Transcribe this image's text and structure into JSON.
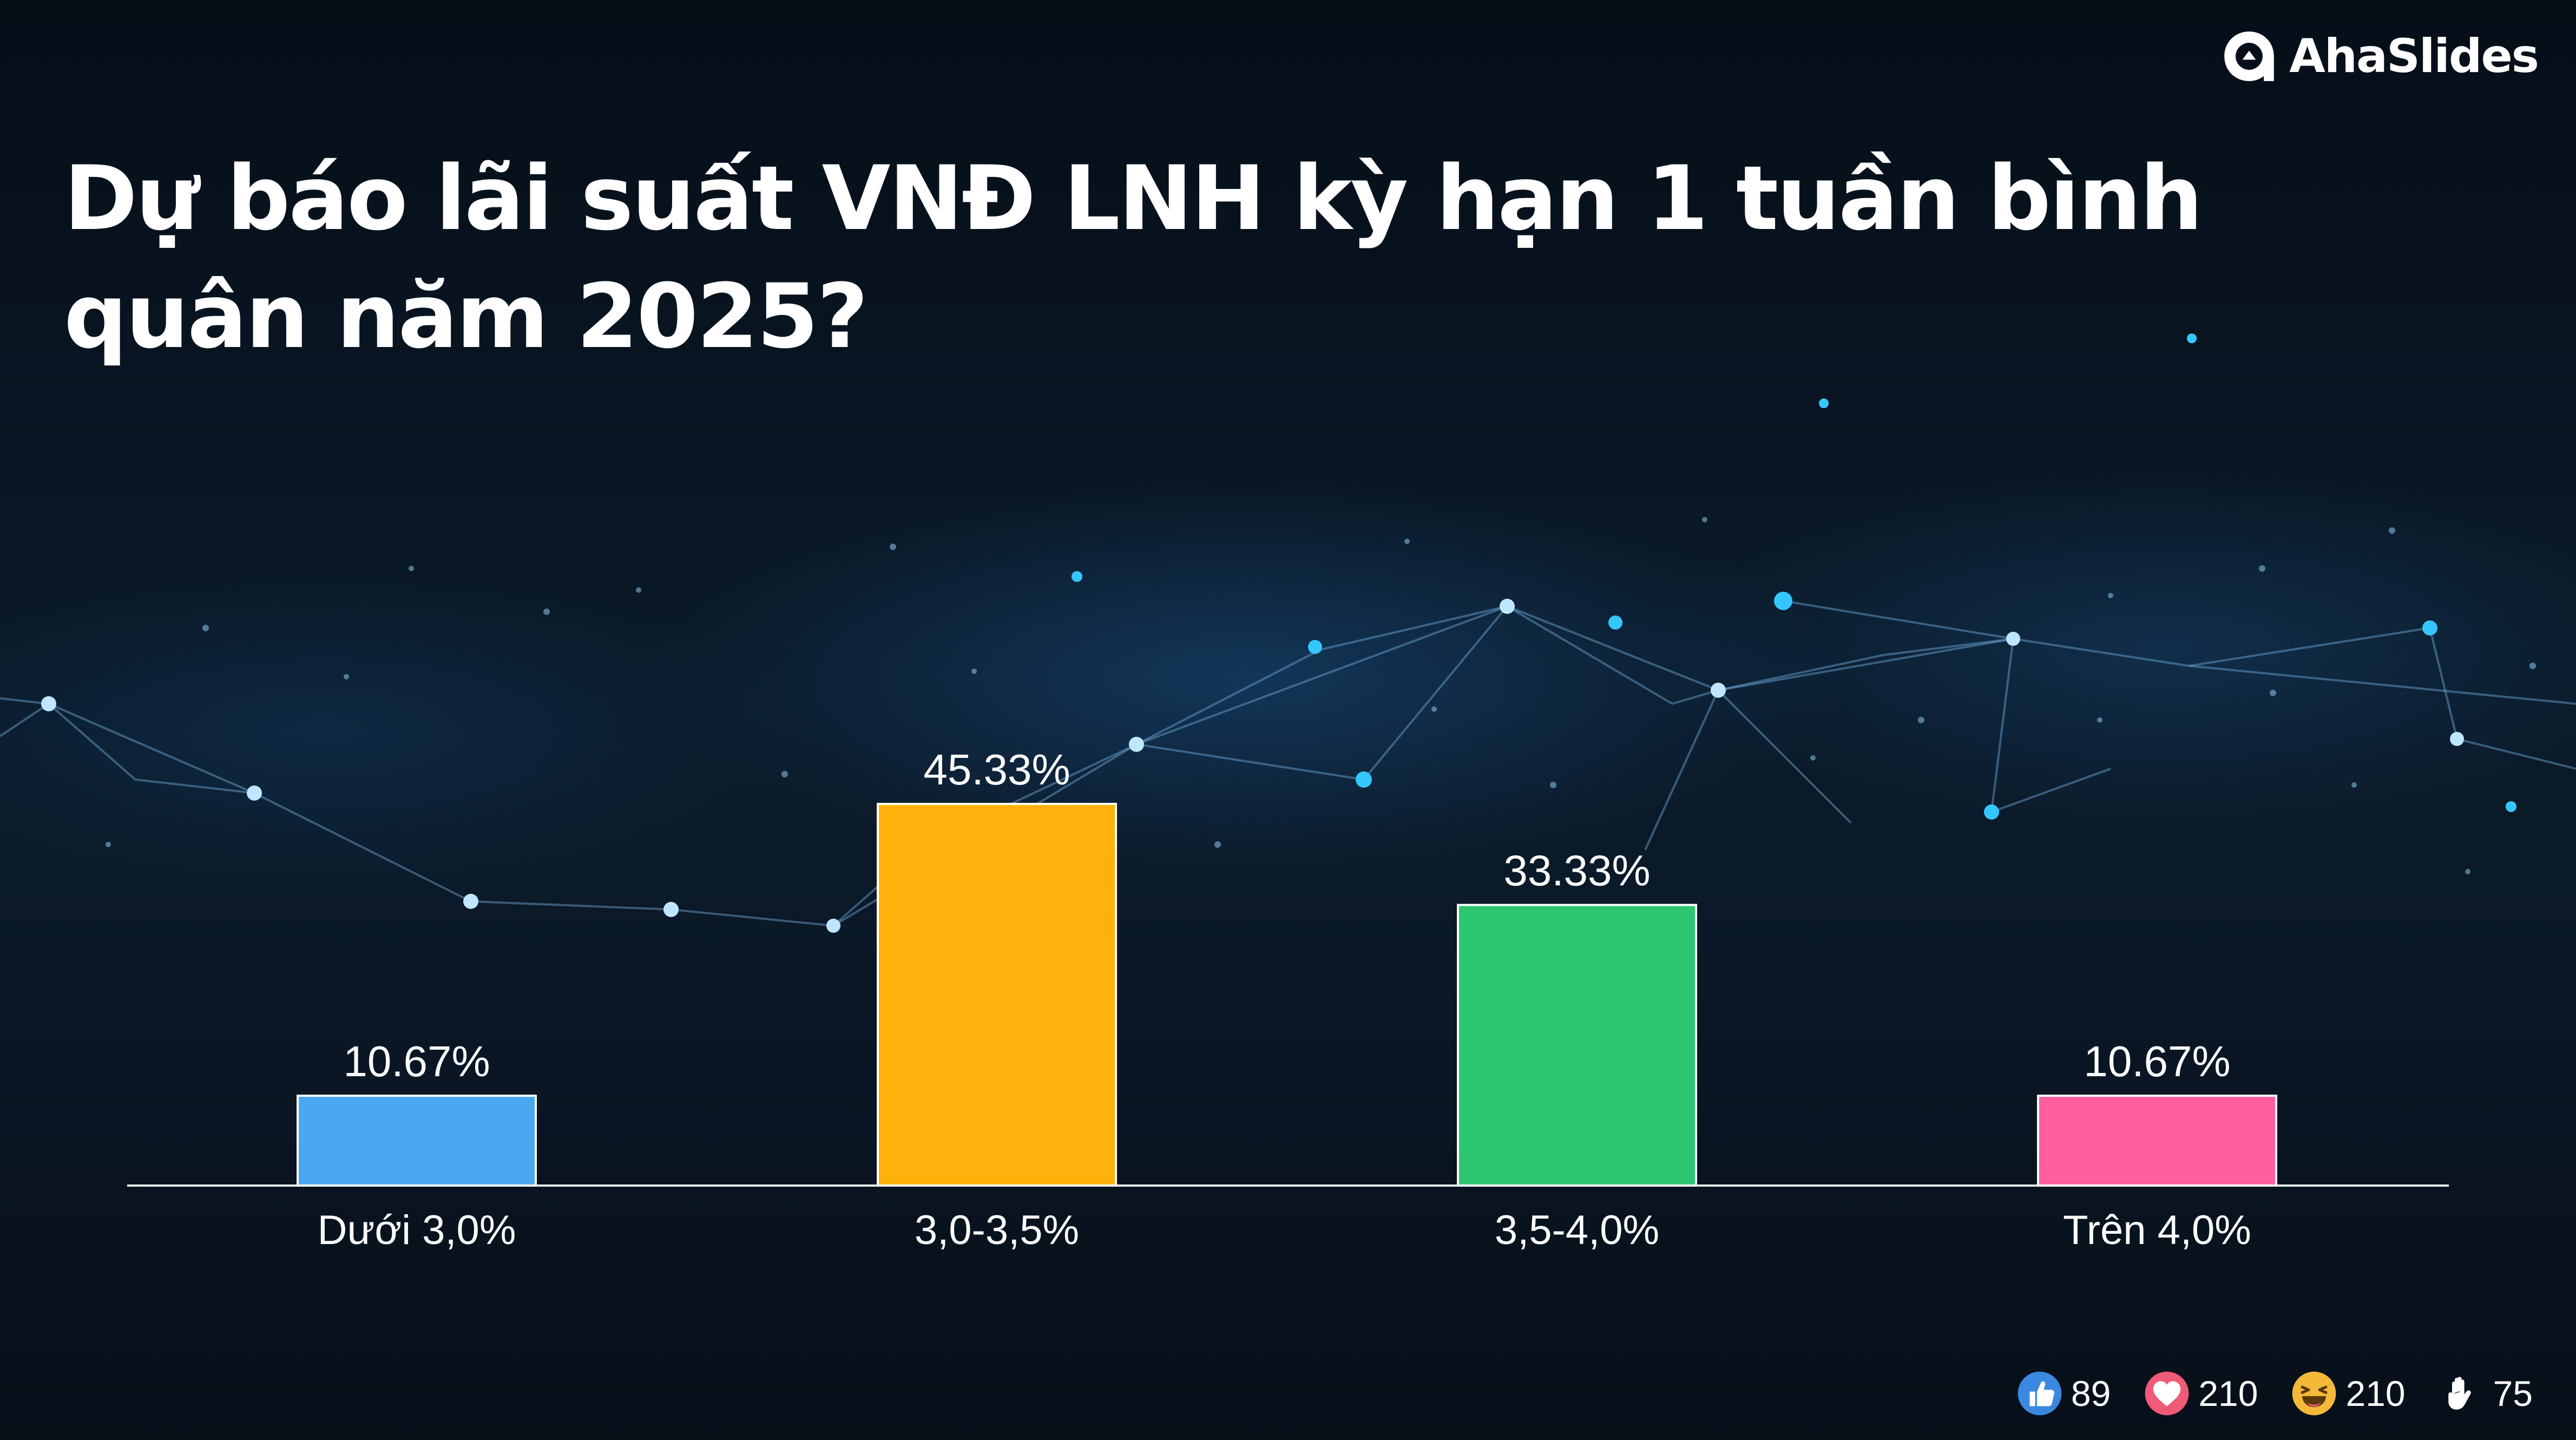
{
  "brand": {
    "name": "AhaSlides",
    "logo_icon": "ahaslides-logo-icon"
  },
  "slide": {
    "title": "Dự báo lãi suất VNĐ LNH kỳ hạn 1 tuần bình quân năm 2025?"
  },
  "chart_data": {
    "type": "bar",
    "categories": [
      "Dưới 3,0%",
      "3,0-3,5%",
      "3,5-4,0%",
      "Trên 4,0%"
    ],
    "values": [
      10.67,
      45.33,
      33.33,
      10.67
    ],
    "value_labels": [
      "10.67%",
      "45.33%",
      "33.33%",
      "10.67%"
    ],
    "colors": [
      "#4aa8f0",
      "#ffb20c",
      "#2ec771",
      "#ff5ea0"
    ],
    "title": "",
    "xlabel": "",
    "ylabel": "",
    "ylim": [
      0,
      45.33
    ],
    "grid": false,
    "legend": "none"
  },
  "reactions": [
    {
      "icon": "thumbs-up-icon",
      "count": "89",
      "color": "#4a90e2"
    },
    {
      "icon": "heart-icon",
      "count": "210",
      "color": "#ef5a77"
    },
    {
      "icon": "laughing-face-icon",
      "count": "210",
      "color": "#f5b93a"
    },
    {
      "icon": "raised-hand-icon",
      "count": "75",
      "color": "#ffffff"
    }
  ]
}
